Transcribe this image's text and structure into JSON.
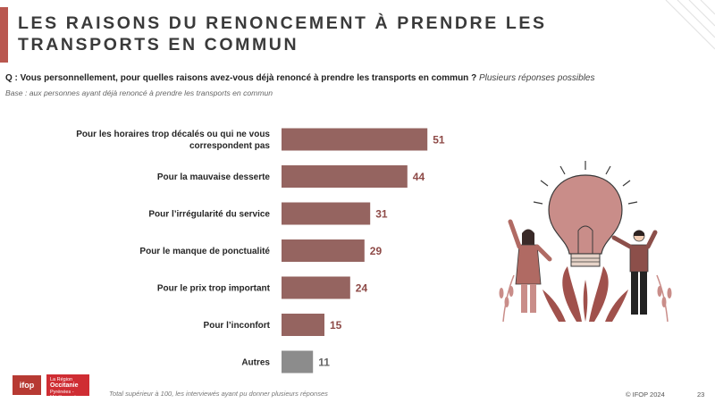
{
  "header": {
    "title": "LES RAISONS DU RENONCEMENT À PRENDRE LES TRANSPORTS EN COMMUN"
  },
  "question": {
    "text": "Q : Vous personnellement, pour quelles raisons avez-vous déjà renoncé à prendre les transports en commun ?",
    "hint": "Plusieurs réponses possibles"
  },
  "base": "Base : aux personnes ayant déjà renoncé à prendre les transports en commun",
  "colors": {
    "accent": "#b9574f",
    "bar": "#956460",
    "bar_other": "#8c8c8c",
    "value_text": "#8e4a47"
  },
  "chart_data": {
    "type": "bar",
    "orientation": "horizontal",
    "categories": [
      "Pour les horaires trop décalés ou qui ne vous correspondent pas",
      "Pour la mauvaise desserte",
      "Pour l’irrégularité du service",
      "Pour le manque de ponctualité",
      "Pour le prix trop important",
      "Pour l’inconfort",
      "Autres"
    ],
    "values": [
      51,
      44,
      31,
      29,
      24,
      15,
      11
    ],
    "grid": false,
    "value_labels": true
  },
  "footer": {
    "logo_ifop": "ifop",
    "logo_region_line1": "La Région",
    "logo_region_line2": "Occitanie",
    "logo_region_line3": "Pyrénées - Méditerranée",
    "note": "Total supérieur à 100, les interviewés ayant pu donner plusieurs réponses",
    "copyright": "© IFOP 2024",
    "page": "23"
  },
  "icons": [
    "lightbulb-illustration",
    "person-woman-illustration",
    "person-man-illustration",
    "plant-illustration"
  ]
}
